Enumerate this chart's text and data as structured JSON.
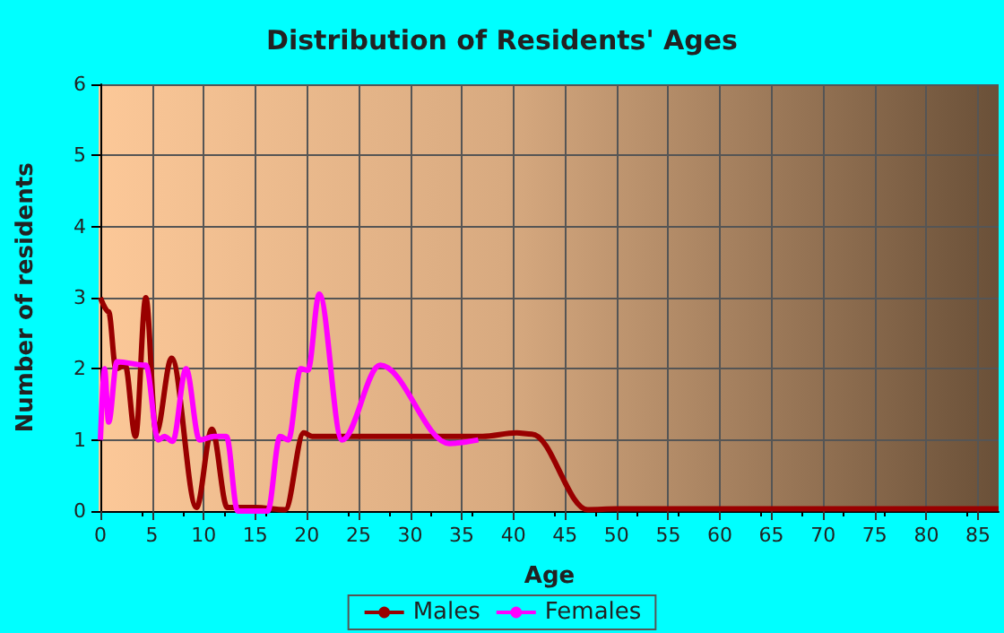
{
  "chart_data": {
    "type": "line",
    "title": "Distribution of Residents' Ages",
    "xlabel": "Age",
    "ylabel": "Number of residents",
    "xlim": [
      0,
      87
    ],
    "xticks": [
      0,
      5,
      10,
      15,
      20,
      25,
      30,
      35,
      40,
      45,
      50,
      55,
      60,
      65,
      70,
      75,
      80,
      85
    ],
    "ylim": [
      0,
      6
    ],
    "yticks": [
      0,
      1,
      2,
      3,
      4,
      5,
      6
    ],
    "grid": true,
    "legend": "bottom",
    "marker": "none",
    "line_style": "solid",
    "series": [
      {
        "name": "Males",
        "color": "#990000",
        "x": [
          0,
          0.8,
          1.5,
          2.4,
          3.4,
          4.4,
          5.4,
          6.9,
          9.3,
          10.8,
          12.3,
          15,
          17.9,
          19.7,
          20.5,
          25,
          30,
          37,
          40.3,
          41.8,
          47.2,
          50,
          60,
          70,
          80,
          87
        ],
        "values": [
          3.0,
          2.8,
          2.0,
          2.05,
          1.05,
          3.0,
          1.1,
          2.15,
          0.05,
          1.15,
          0.05,
          0.05,
          0.02,
          1.1,
          1.05,
          1.05,
          1.05,
          1.05,
          1.1,
          1.08,
          0.02,
          0.03,
          0.03,
          0.03,
          0.03,
          0.03
        ]
      },
      {
        "name": "Females",
        "color": "#ff00ff",
        "x": [
          0,
          0.4,
          0.8,
          1.6,
          4.4,
          5.6,
          6.2,
          7,
          8.3,
          9.6,
          11,
          12.2,
          13.3,
          16.2,
          17.4,
          18.2,
          19.4,
          20.1,
          21.2,
          23.4,
          27.1,
          33.8,
          36.6
        ],
        "values": [
          1.0,
          2.0,
          1.25,
          2.1,
          2.05,
          1.0,
          1.05,
          0.98,
          2.0,
          1.0,
          1.05,
          1.05,
          0.0,
          0.0,
          1.05,
          1.0,
          2.0,
          1.98,
          3.05,
          1.0,
          2.05,
          0.95,
          1.0
        ]
      }
    ]
  }
}
